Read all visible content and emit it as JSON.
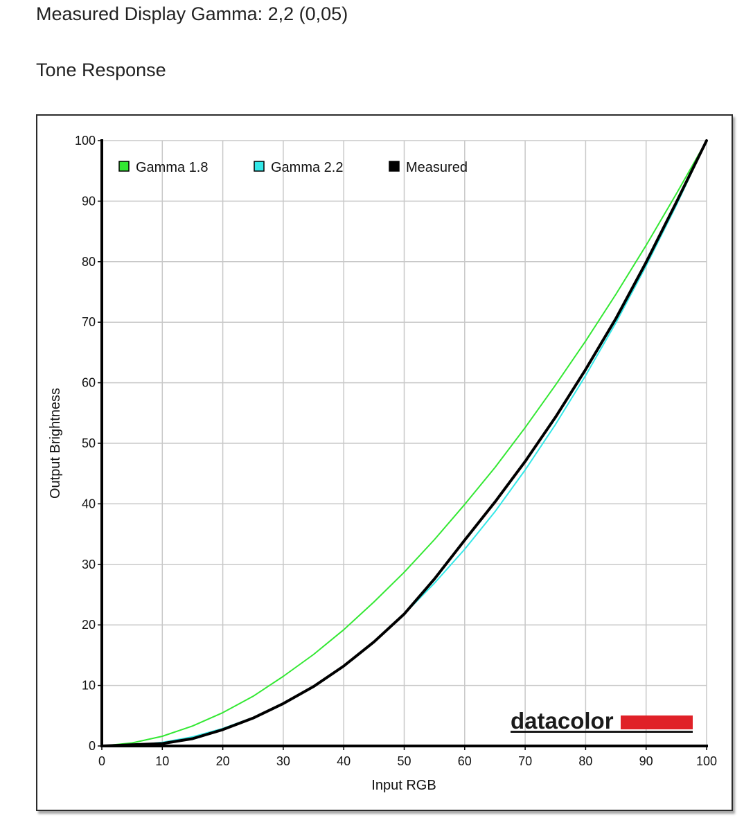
{
  "headings": {
    "gamma": "Measured Display Gamma: 2,2 (0,05)",
    "tone": "Tone Response"
  },
  "logo": {
    "text": "datacolor",
    "bar_color": "#e02128"
  },
  "chart_data": {
    "type": "line",
    "title": "Tone Response",
    "xlabel": "Input RGB",
    "ylabel": "Output Brightness",
    "xlim": [
      0,
      100
    ],
    "ylim": [
      0,
      100
    ],
    "x_ticks": [
      "0",
      "10",
      "20",
      "30",
      "40",
      "50",
      "60",
      "70",
      "80",
      "90",
      "100"
    ],
    "y_ticks": [
      "0",
      "10",
      "20",
      "30",
      "40",
      "50",
      "60",
      "70",
      "80",
      "90",
      "100"
    ],
    "grid": true,
    "legend_position": "top-left",
    "x": [
      0,
      5,
      10,
      15,
      20,
      25,
      30,
      35,
      40,
      45,
      50,
      55,
      60,
      65,
      70,
      75,
      80,
      85,
      90,
      95,
      100
    ],
    "series": [
      {
        "name": "Gamma 1.8",
        "color": "#33e833",
        "values": [
          0,
          0.5,
          1.6,
          3.3,
          5.5,
          8.2,
          11.5,
          15.1,
          19.2,
          23.8,
          28.7,
          34.1,
          39.9,
          46.0,
          52.6,
          59.6,
          66.9,
          74.6,
          82.7,
          91.2,
          100
        ]
      },
      {
        "name": "Gamma 2.2",
        "color": "#33e8e8",
        "values": [
          0,
          0.1,
          0.6,
          1.5,
          2.9,
          4.7,
          7.1,
          9.9,
          13.3,
          17.2,
          21.8,
          26.9,
          32.5,
          38.7,
          45.6,
          53.1,
          61.2,
          69.9,
          79.3,
          89.3,
          100
        ]
      },
      {
        "name": "Measured",
        "color": "#000000",
        "values": [
          0,
          0.2,
          0.4,
          1.2,
          2.7,
          4.6,
          7.0,
          9.8,
          13.2,
          17.2,
          21.8,
          27.6,
          34.0,
          40.3,
          47.0,
          54.3,
          62.2,
          70.6,
          79.9,
          89.8,
          100
        ]
      }
    ]
  }
}
